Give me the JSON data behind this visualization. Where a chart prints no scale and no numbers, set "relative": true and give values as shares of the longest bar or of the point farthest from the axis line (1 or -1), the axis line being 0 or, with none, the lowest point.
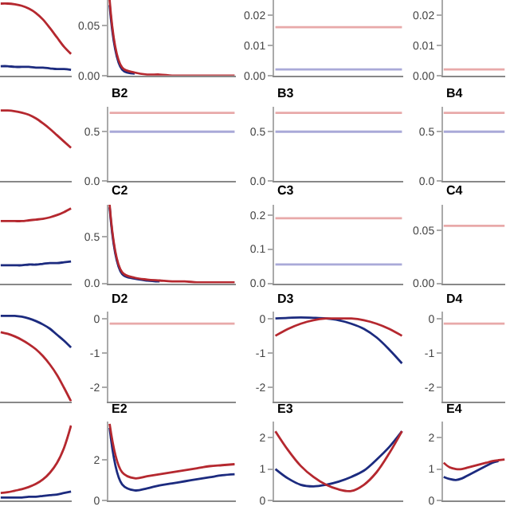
{
  "chart_data": [
    {
      "type": "line",
      "relative": true,
      "tick_labels": false,
      "categories": [
        null,
        null,
        null,
        null,
        null,
        null,
        null,
        null,
        null,
        null,
        null
      ],
      "series": [
        {
          "color": "#1c2b7f",
          "values": [
            0.13,
            0.13,
            0.12,
            0.12,
            0.12,
            0.11,
            0.11,
            0.1,
            0.09,
            0.09,
            0.08
          ]
        },
        {
          "color": "#b5282f",
          "values": [
            1,
            1,
            0.99,
            0.97,
            0.93,
            0.87,
            0.78,
            0.66,
            0.53,
            0.4,
            0.3
          ]
        }
      ]
    },
    {
      "type": "line",
      "tick_labels": "y",
      "categories": [
        null,
        null,
        null,
        null,
        null,
        null,
        null,
        null,
        null,
        null,
        null
      ],
      "ylim": [
        0,
        0.075
      ],
      "yticks": [
        {
          "value": 0,
          "label": "0.00"
        },
        {
          "value": 0.05,
          "label": "0.05"
        }
      ],
      "series": [
        {
          "color": "#1c2b7f",
          "values": [
            0.07,
            0.006,
            0.002,
            null,
            null,
            null,
            null,
            null,
            null,
            null,
            null
          ]
        },
        {
          "color": "#b5282f",
          "values": [
            0.075,
            0.008,
            0.003,
            0.001,
            0.001,
            0,
            0,
            0,
            0,
            0,
            0
          ]
        }
      ]
    },
    {
      "type": "line",
      "tick_labels": "y",
      "categories": [
        null,
        null,
        null,
        null,
        null,
        null,
        null,
        null,
        null,
        null,
        null
      ],
      "ylim": [
        0,
        0.025
      ],
      "yticks": [
        {
          "value": 0,
          "label": "0.00"
        },
        {
          "value": 0.01,
          "label": "0.01"
        },
        {
          "value": 0.02,
          "label": "0.02"
        }
      ],
      "series": [
        {
          "color": "#a9a9d8",
          "values": [
            0.002,
            0.002,
            0.002,
            0.002,
            0.002,
            0.002,
            0.002,
            0.002,
            0.002,
            0.002,
            0.002
          ]
        },
        {
          "color": "#e8a9a9",
          "values": [
            0.016,
            0.016,
            0.016,
            0.016,
            0.016,
            0.016,
            0.016,
            0.016,
            0.016,
            0.016,
            0.016
          ]
        }
      ]
    },
    {
      "type": "line",
      "tick_labels": "y",
      "categories": [
        null,
        null,
        null,
        null,
        null,
        null,
        null,
        null,
        null,
        null,
        null
      ],
      "ylim": [
        0,
        0.025
      ],
      "yticks": [
        {
          "value": 0,
          "label": "0.00"
        },
        {
          "value": 0.01,
          "label": "0.01"
        },
        {
          "value": 0.02,
          "label": "0.02"
        }
      ],
      "series": [
        {
          "color": "#e8a9a9",
          "values": [
            0.002,
            0.002,
            0.002,
            0.002,
            0.002,
            0.002,
            0.002,
            0.002,
            0.002,
            0.002,
            0.002
          ]
        }
      ]
    },
    {
      "type": "line",
      "relative": true,
      "tick_labels": false,
      "categories": [
        null,
        null,
        null,
        null,
        null,
        null,
        null,
        null,
        null,
        null,
        null
      ],
      "series": [
        {
          "color": "#b5282f",
          "values": [
            1,
            1,
            0.99,
            0.97,
            0.94,
            0.89,
            0.82,
            0.74,
            0.65,
            0.56,
            0.47
          ]
        }
      ]
    },
    {
      "type": "line",
      "title": "B2",
      "tick_labels": "y",
      "categories": [
        null,
        null,
        null,
        null,
        null,
        null,
        null,
        null,
        null,
        null,
        null
      ],
      "ylim": [
        0,
        0.75
      ],
      "yticks": [
        {
          "value": 0,
          "label": "0.0"
        },
        {
          "value": 0.5,
          "label": "0.5"
        }
      ],
      "series": [
        {
          "color": "#a9a9d8",
          "values": [
            0.5,
            0.5,
            0.5,
            0.5,
            0.5,
            0.5,
            0.5,
            0.5,
            0.5,
            0.5,
            0.5
          ]
        },
        {
          "color": "#e8a9a9",
          "values": [
            0.69,
            0.69,
            0.69,
            0.69,
            0.69,
            0.69,
            0.69,
            0.69,
            0.69,
            0.69,
            0.69
          ]
        }
      ]
    },
    {
      "type": "line",
      "title": "B3",
      "tick_labels": "y",
      "categories": [
        null,
        null,
        null,
        null,
        null,
        null,
        null,
        null,
        null,
        null,
        null
      ],
      "ylim": [
        0,
        0.75
      ],
      "yticks": [
        {
          "value": 0,
          "label": "0.0"
        },
        {
          "value": 0.5,
          "label": "0.5"
        }
      ],
      "series": [
        {
          "color": "#a9a9d8",
          "values": [
            0.5,
            0.5,
            0.5,
            0.5,
            0.5,
            0.5,
            0.5,
            0.5,
            0.5,
            0.5,
            0.5
          ]
        },
        {
          "color": "#e8a9a9",
          "values": [
            0.69,
            0.69,
            0.69,
            0.69,
            0.69,
            0.69,
            0.69,
            0.69,
            0.69,
            0.69,
            0.69
          ]
        }
      ]
    },
    {
      "type": "line",
      "title": "B4",
      "tick_labels": "y",
      "categories": [
        null,
        null,
        null,
        null,
        null,
        null,
        null,
        null,
        null,
        null,
        null
      ],
      "ylim": [
        0,
        0.75
      ],
      "yticks": [
        {
          "value": 0,
          "label": "0.0"
        },
        {
          "value": 0.5,
          "label": "0.5"
        }
      ],
      "series": [
        {
          "color": "#a9a9d8",
          "values": [
            0.5,
            0.5,
            0.5,
            0.5,
            0.5,
            0.5,
            0.5,
            0.5,
            0.5,
            0.5,
            0.5
          ]
        },
        {
          "color": "#e8a9a9",
          "values": [
            0.69,
            0.69,
            0.69,
            0.69,
            0.69,
            0.69,
            0.69,
            0.69,
            0.69,
            0.69,
            0.69
          ]
        }
      ]
    },
    {
      "type": "line",
      "relative": true,
      "tick_labels": false,
      "categories": [
        null,
        null,
        null,
        null,
        null,
        null,
        null,
        null,
        null,
        null,
        null
      ],
      "series": [
        {
          "color": "#1c2b7f",
          "values": [
            0.24,
            0.24,
            0.24,
            0.24,
            0.25,
            0.25,
            0.26,
            0.27,
            0.27,
            0.28,
            0.29
          ]
        },
        {
          "color": "#b5282f",
          "values": [
            0.83,
            0.83,
            0.83,
            0.83,
            0.84,
            0.85,
            0.86,
            0.88,
            0.91,
            0.95,
            1
          ]
        }
      ]
    },
    {
      "type": "line",
      "title": "C2",
      "tick_labels": "y",
      "categories": [
        null,
        null,
        null,
        null,
        null,
        null,
        null,
        null,
        null,
        null,
        null
      ],
      "ylim": [
        0,
        0.85
      ],
      "yticks": [
        {
          "value": 0,
          "label": "0.0"
        },
        {
          "value": 0.5,
          "label": "0.5"
        }
      ],
      "series": [
        {
          "color": "#1c2b7f",
          "values": [
            0.82,
            0.1,
            0.05,
            0.03,
            0.02,
            null,
            null,
            null,
            null,
            null,
            null
          ]
        },
        {
          "color": "#b5282f",
          "values": [
            0.85,
            0.12,
            0.06,
            0.04,
            0.03,
            0.02,
            0.02,
            0.01,
            0.01,
            0.01,
            0.01
          ]
        }
      ]
    },
    {
      "type": "line",
      "title": "C3",
      "tick_labels": "y",
      "categories": [
        null,
        null,
        null,
        null,
        null,
        null,
        null,
        null,
        null,
        null,
        null
      ],
      "ylim": [
        0,
        0.23
      ],
      "yticks": [
        {
          "value": 0,
          "label": "0.0"
        },
        {
          "value": 0.1,
          "label": "0.1"
        },
        {
          "value": 0.2,
          "label": "0.2"
        }
      ],
      "series": [
        {
          "color": "#a9a9d8",
          "values": [
            0.055,
            0.055,
            0.055,
            0.055,
            0.055,
            0.055,
            0.055,
            0.055,
            0.055,
            0.055,
            0.055
          ]
        },
        {
          "color": "#e8a9a9",
          "values": [
            0.19,
            0.19,
            0.19,
            0.19,
            0.19,
            0.19,
            0.19,
            0.19,
            0.19,
            0.19,
            0.19
          ]
        }
      ]
    },
    {
      "type": "line",
      "title": "C4",
      "tick_labels": "y",
      "categories": [
        null,
        null,
        null,
        null,
        null,
        null,
        null,
        null,
        null,
        null,
        null
      ],
      "ylim": [
        0,
        0.074
      ],
      "yticks": [
        {
          "value": 0,
          "label": "0.00"
        },
        {
          "value": 0.05,
          "label": "0.05"
        }
      ],
      "series": [
        {
          "color": "#e8a9a9",
          "values": [
            0.054,
            0.054,
            0.054,
            0.054,
            0.054,
            0.054,
            0.054,
            0.054,
            0.054,
            0.054,
            0.054
          ]
        }
      ]
    },
    {
      "type": "line",
      "relative": true,
      "tick_labels": false,
      "categories": [
        null,
        null,
        null,
        null,
        null,
        null,
        null,
        null,
        null,
        null,
        null
      ],
      "series": [
        {
          "color": "#1c2b7f",
          "values": [
            1,
            1,
            1,
            0.99,
            0.97,
            0.94,
            0.9,
            0.85,
            0.78,
            0.71,
            0.63
          ]
        },
        {
          "color": "#b5282f",
          "values": [
            0.81,
            0.79,
            0.76,
            0.72,
            0.67,
            0.61,
            0.53,
            0.43,
            0.31,
            0.16,
            0
          ]
        }
      ]
    },
    {
      "type": "line",
      "title": "D2",
      "tick_labels": "y",
      "categories": [
        null,
        null,
        null,
        null,
        null,
        null,
        null,
        null,
        null,
        null,
        null
      ],
      "ylim": [
        -2.4,
        0.2
      ],
      "yticks": [
        0,
        -1,
        -2
      ],
      "series": [
        {
          "color": "#e8a9a9",
          "values": [
            -0.15,
            -0.15,
            -0.15,
            -0.15,
            -0.15,
            -0.15,
            -0.15,
            -0.15,
            -0.15,
            -0.15,
            -0.15
          ]
        }
      ]
    },
    {
      "type": "line",
      "title": "D3",
      "tick_labels": "y",
      "categories": [
        null,
        null,
        null,
        null,
        null,
        null,
        null,
        null,
        null,
        null,
        null
      ],
      "ylim": [
        -2.4,
        0.2
      ],
      "yticks": [
        0,
        -1,
        -2
      ],
      "series": [
        {
          "color": "#1c2b7f",
          "values": [
            0,
            0.02,
            0.03,
            0.02,
            0,
            -0.05,
            -0.15,
            -0.3,
            -0.55,
            -0.9,
            -1.3
          ]
        },
        {
          "color": "#b5282f",
          "values": [
            -0.5,
            -0.3,
            -0.15,
            -0.05,
            0,
            0,
            0,
            -0.05,
            -0.15,
            -0.3,
            -0.5
          ]
        }
      ]
    },
    {
      "type": "line",
      "title": "D4",
      "tick_labels": "y",
      "categories": [
        null,
        null,
        null,
        null,
        null,
        null,
        null,
        null,
        null,
        null,
        null
      ],
      "ylim": [
        -2.4,
        0.2
      ],
      "yticks": [
        0,
        -1,
        -2
      ],
      "series": [
        {
          "color": "#e8a9a9",
          "values": [
            -0.15,
            -0.15,
            -0.15,
            -0.15,
            -0.15,
            -0.15,
            -0.15,
            -0.15,
            -0.15,
            -0.15,
            -0.15
          ]
        }
      ]
    },
    {
      "type": "line",
      "relative": true,
      "tick_labels": false,
      "categories": [
        null,
        null,
        null,
        null,
        null,
        null,
        null,
        null,
        null,
        null,
        null
      ],
      "series": [
        {
          "color": "#1c2b7f",
          "values": [
            0.04,
            0.04,
            0.04,
            0.04,
            0.05,
            0.05,
            0.06,
            0.07,
            0.08,
            0.1,
            0.12
          ]
        },
        {
          "color": "#b5282f",
          "values": [
            0.1,
            0.11,
            0.13,
            0.15,
            0.18,
            0.22,
            0.28,
            0.37,
            0.5,
            0.7,
            1
          ]
        }
      ]
    },
    {
      "type": "line",
      "title": "E2",
      "tick_labels": "y",
      "categories": [
        null,
        null,
        null,
        null,
        null,
        null,
        null,
        null,
        null,
        null,
        null
      ],
      "ylim": [
        0,
        3.9
      ],
      "yticks": [
        0,
        2
      ],
      "series": [
        {
          "color": "#1c2b7f",
          "values": [
            3.6,
            0.8,
            0.5,
            0.6,
            0.75,
            0.85,
            0.95,
            1.05,
            1.15,
            1.25,
            1.3
          ]
        },
        {
          "color": "#b5282f",
          "values": [
            3.8,
            1.4,
            1.1,
            1.2,
            1.3,
            1.4,
            1.5,
            1.6,
            1.7,
            1.75,
            1.8
          ]
        }
      ]
    },
    {
      "type": "line",
      "title": "E3",
      "tick_labels": "y",
      "categories": [
        null,
        null,
        null,
        null,
        null,
        null,
        null,
        null,
        null,
        null,
        null
      ],
      "ylim": [
        0,
        2.5
      ],
      "yticks": [
        0,
        1,
        2
      ],
      "series": [
        {
          "color": "#1c2b7f",
          "values": [
            1.0,
            0.7,
            0.5,
            0.45,
            0.5,
            0.6,
            0.75,
            0.95,
            1.3,
            1.7,
            2.2
          ]
        },
        {
          "color": "#b5282f",
          "values": [
            2.2,
            1.6,
            1.1,
            0.75,
            0.5,
            0.35,
            0.3,
            0.5,
            0.9,
            1.5,
            2.2
          ]
        }
      ]
    },
    {
      "type": "line",
      "title": "E4",
      "tick_labels": "y",
      "categories": [
        null,
        null,
        null,
        null,
        null,
        null,
        null,
        null,
        null,
        null,
        null
      ],
      "ylim": [
        0,
        2.5
      ],
      "yticks": [
        0,
        1,
        2
      ],
      "series": [
        {
          "color": "#1c2b7f",
          "values": [
            0.75,
            0.68,
            0.65,
            0.7,
            0.8,
            0.9,
            1.0,
            1.1,
            1.2,
            1.25,
            null
          ]
        },
        {
          "color": "#b5282f",
          "values": [
            1.2,
            1.05,
            1.0,
            1.0,
            1.05,
            1.1,
            1.15,
            1.2,
            1.25,
            1.28,
            1.3
          ]
        }
      ]
    }
  ]
}
